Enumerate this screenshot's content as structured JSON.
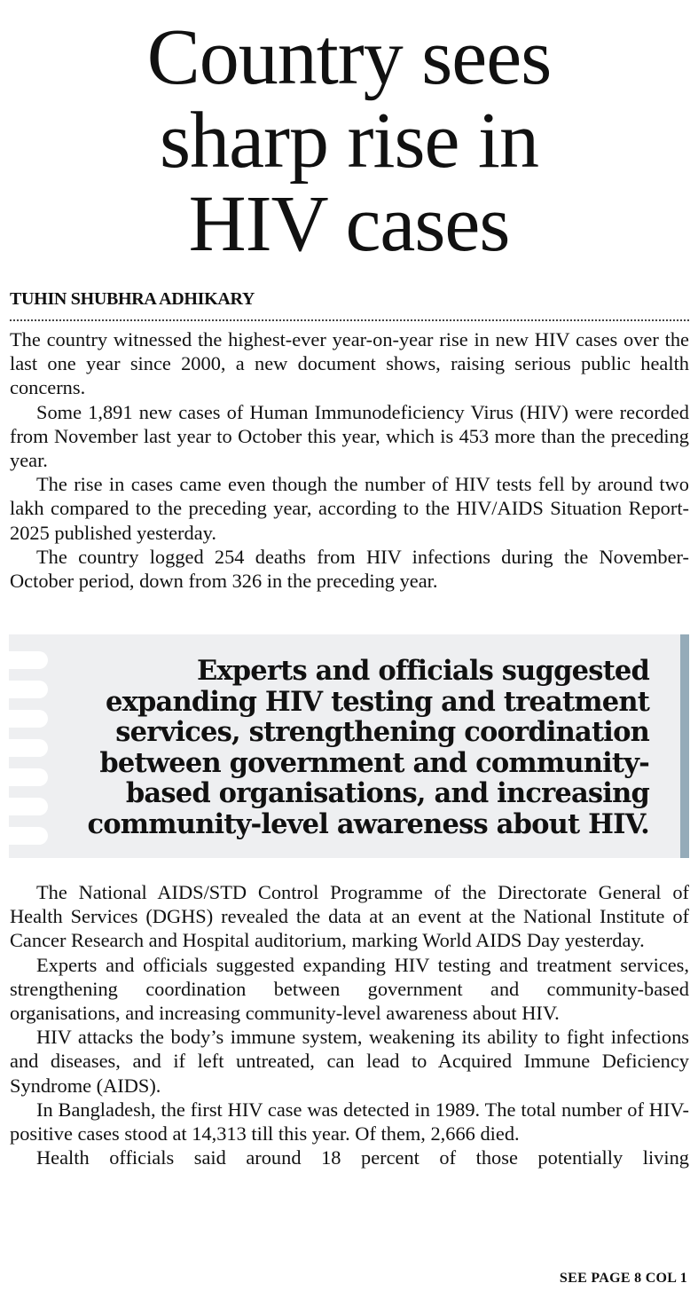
{
  "headline": [
    "Country sees",
    "sharp rise in",
    "HIV cases"
  ],
  "byline": "TUHIN SHUBHRA ADHIKARY",
  "paragraphs_top": [
    "The country witnessed the highest-ever year-on-year rise in new HIV cases over the last one year since 2000, a new document shows, raising serious public health concerns.",
    "Some 1,891 new cases of Human Immunodeficiency Virus (HIV) were recorded from November last year to October this year, which is 453 more than the preceding year.",
    "The rise in cases came even though the number of HIV tests fell by around two lakh compared to the preceding year, according to the HIV/AIDS Situation Report-2025 published yesterday.",
    "The country logged 254 deaths from HIV infections during the November-October period, down from 326 in the preceding year."
  ],
  "pull_quote": "Experts and officials suggested expanding HIV testing and treatment services, strengthening coordination between government and community-based organisations, and increasing community-level awareness about HIV.",
  "paragraphs_bottom": [
    "The National AIDS/STD Control Programme of the Directorate General of Health Services (DGHS) revealed the data at an event at the National Institute of Cancer Research and Hospital auditorium, marking World AIDS Day yesterday.",
    "Experts and officials suggested expanding HIV testing and treatment services, strengthening coordination between government and community-based organisations, and increasing community-level awareness about HIV.",
    "HIV attacks the body’s immune system, weakening its ability to fight infections and diseases, and if left untreated, can lead to Acquired Immune Deficiency Syndrome (AIDS).",
    "In Bangladesh, the first HIV case was detected in 1989. The total number of HIV-positive cases stood at 14,313 till this year. Of them, 2,666 died.",
    "Health officials said around 18 percent of those potentially living"
  ],
  "continuation": "SEE PAGE 8 COL 1",
  "colors": {
    "quote_bg": "#eeeff1",
    "quote_bar": "#95abb9"
  }
}
